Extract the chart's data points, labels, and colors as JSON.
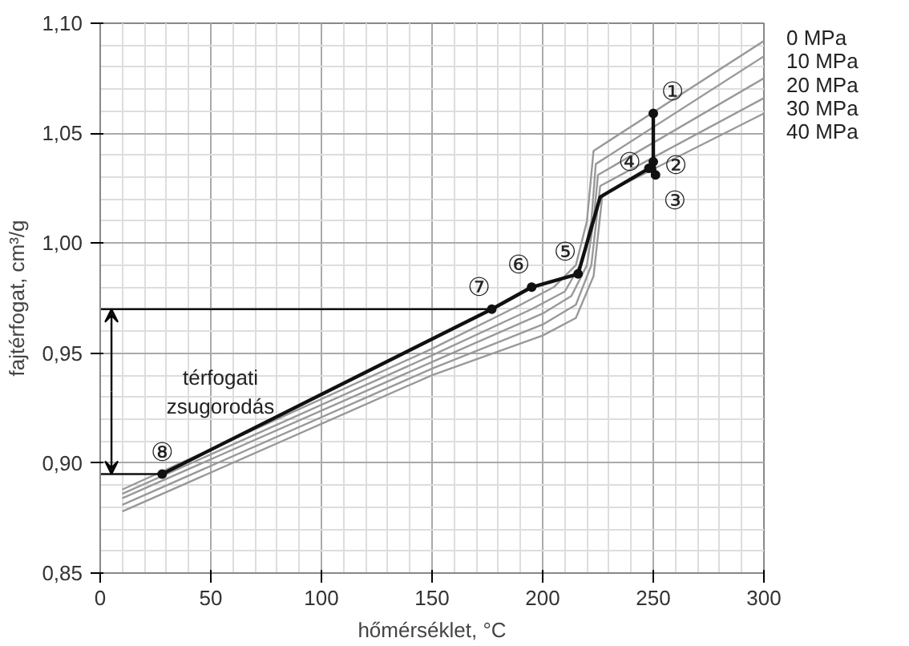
{
  "chart_data": {
    "type": "line",
    "xlabel": "hőmérséklet, °C",
    "ylabel": "fajtérfogat, cm³/g",
    "xlim": [
      0,
      300
    ],
    "xticks": [
      0,
      50,
      100,
      150,
      200,
      250,
      300
    ],
    "ylim": [
      0.85,
      1.1
    ],
    "yticks": [
      {
        "value": 0.85,
        "label": "0,85"
      },
      {
        "value": 0.9,
        "label": "0,90"
      },
      {
        "value": 0.95,
        "label": "0,95"
      },
      {
        "value": 1.0,
        "label": "1,00"
      },
      {
        "value": 1.05,
        "label": "1,05"
      },
      {
        "value": 1.1,
        "label": "1,10"
      }
    ],
    "grid": true,
    "marker": "none",
    "line_style": "solid",
    "series": [
      {
        "name": "0 MPa",
        "color": "#999999",
        "x": [
          10,
          150,
          190,
          205,
          215,
          220,
          223,
          300
        ],
        "values": [
          0.888,
          0.952,
          0.972,
          0.98,
          0.99,
          1.01,
          1.042,
          1.092
        ]
      },
      {
        "name": "10 MPa",
        "color": "#999999",
        "x": [
          10,
          150,
          195,
          210,
          218,
          222,
          224,
          300
        ],
        "values": [
          0.886,
          0.949,
          0.97,
          0.978,
          0.992,
          1.01,
          1.036,
          1.085
        ]
      },
      {
        "name": "20 MPa",
        "color": "#999999",
        "x": [
          10,
          150,
          200,
          213,
          220,
          223,
          225,
          300
        ],
        "values": [
          0.884,
          0.946,
          0.968,
          0.976,
          0.99,
          1.01,
          1.031,
          1.075
        ]
      },
      {
        "name": "30 MPa",
        "color": "#999999",
        "x": [
          10,
          150,
          200,
          215,
          222,
          226,
          300
        ],
        "values": [
          0.881,
          0.943,
          0.963,
          0.972,
          0.99,
          1.026,
          1.066
        ]
      },
      {
        "name": "40 MPa",
        "color": "#999999",
        "x": [
          10,
          150,
          200,
          215,
          223,
          227,
          300
        ],
        "values": [
          0.878,
          0.94,
          0.958,
          0.966,
          0.985,
          1.022,
          1.059
        ]
      },
      {
        "color": "#111111",
        "x": [
          250,
          250,
          251,
          248,
          226,
          216,
          195,
          177,
          28
        ],
        "values": [
          1.059,
          1.037,
          1.031,
          1.034,
          1.021,
          0.986,
          0.98,
          0.97,
          0.895
        ]
      },
      {
        "color": "#111111",
        "x": [
          0,
          177
        ],
        "values": [
          0.97,
          0.97
        ]
      },
      {
        "color": "#111111",
        "x": [
          0,
          28
        ],
        "values": [
          0.895,
          0.895
        ]
      },
      {
        "type": "scatter",
        "marker": "circle",
        "color": "#111111",
        "x": [
          250,
          250,
          251,
          248,
          216,
          195,
          177,
          28
        ],
        "values": [
          1.059,
          1.037,
          1.031,
          1.034,
          0.986,
          0.98,
          0.97,
          0.895
        ]
      }
    ],
    "annotations": [
      {
        "text": "①",
        "x": 250,
        "y": 1.059
      },
      {
        "text": "②",
        "x": 250,
        "y": 1.037
      },
      {
        "text": "③",
        "x": 251,
        "y": 1.031
      },
      {
        "text": "④",
        "x": 248,
        "y": 1.034
      },
      {
        "text": "⑤",
        "x": 216,
        "y": 0.986
      },
      {
        "text": "⑥",
        "x": 195,
        "y": 0.98
      },
      {
        "text": "⑦",
        "x": 177,
        "y": 0.97
      },
      {
        "text": "⑧",
        "x": 28,
        "y": 0.895
      },
      "térfogati\nzsugorodás"
    ]
  }
}
